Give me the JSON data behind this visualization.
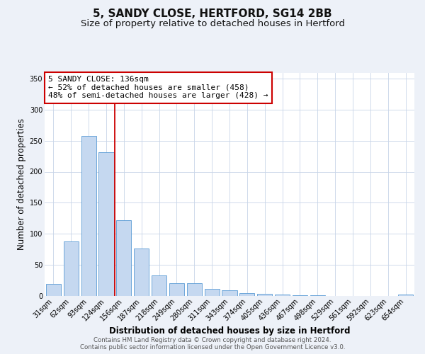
{
  "title": "5, SANDY CLOSE, HERTFORD, SG14 2BB",
  "subtitle": "Size of property relative to detached houses in Hertford",
  "xlabel": "Distribution of detached houses by size in Hertford",
  "ylabel": "Number of detached properties",
  "categories": [
    "31sqm",
    "62sqm",
    "93sqm",
    "124sqm",
    "156sqm",
    "187sqm",
    "218sqm",
    "249sqm",
    "280sqm",
    "311sqm",
    "343sqm",
    "374sqm",
    "405sqm",
    "436sqm",
    "467sqm",
    "498sqm",
    "529sqm",
    "561sqm",
    "592sqm",
    "623sqm",
    "654sqm"
  ],
  "values": [
    19,
    87,
    258,
    231,
    122,
    76,
    33,
    20,
    20,
    11,
    9,
    4,
    3,
    2,
    1,
    1,
    0,
    0,
    0,
    0,
    2
  ],
  "bar_color": "#c5d8f0",
  "bar_edge_color": "#5b9bd5",
  "vline_color": "#cc0000",
  "vline_pos": 3.5,
  "annotation_title": "5 SANDY CLOSE: 136sqm",
  "annotation_line1": "← 52% of detached houses are smaller (458)",
  "annotation_line2": "48% of semi-detached houses are larger (428) →",
  "annotation_box_edgecolor": "#cc0000",
  "ylim": [
    0,
    360
  ],
  "yticks": [
    0,
    50,
    100,
    150,
    200,
    250,
    300,
    350
  ],
  "background_color": "#edf1f8",
  "plot_bg_color": "#ffffff",
  "title_fontsize": 11,
  "subtitle_fontsize": 9.5,
  "axis_label_fontsize": 8.5,
  "tick_fontsize": 7,
  "annotation_fontsize": 8,
  "footer1": "Contains HM Land Registry data © Crown copyright and database right 2024.",
  "footer2": "Contains public sector information licensed under the Open Government Licence v3.0."
}
